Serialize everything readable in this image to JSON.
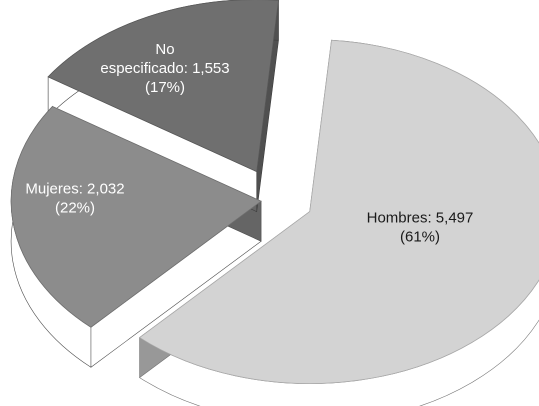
{
  "chart_data": {
    "type": "pie",
    "style": "3d-exploded",
    "title": "",
    "slices": [
      {
        "label": "Hombres",
        "value": 5497,
        "percent": 61,
        "label_lines": [
          "Hombres: 5,497",
          "(61%)"
        ],
        "color": "#d3d3d3"
      },
      {
        "label": "Mujeres",
        "value": 2032,
        "percent": 22,
        "label_lines": [
          "Mujeres: 2,032",
          "(22%)"
        ],
        "color": "#8c8c8c"
      },
      {
        "label": "No especificado",
        "value": 1553,
        "percent": 17,
        "label_lines": [
          "No",
          "especificado: 1,553",
          "(17%)"
        ],
        "color": "#6f6f6f"
      }
    ]
  }
}
